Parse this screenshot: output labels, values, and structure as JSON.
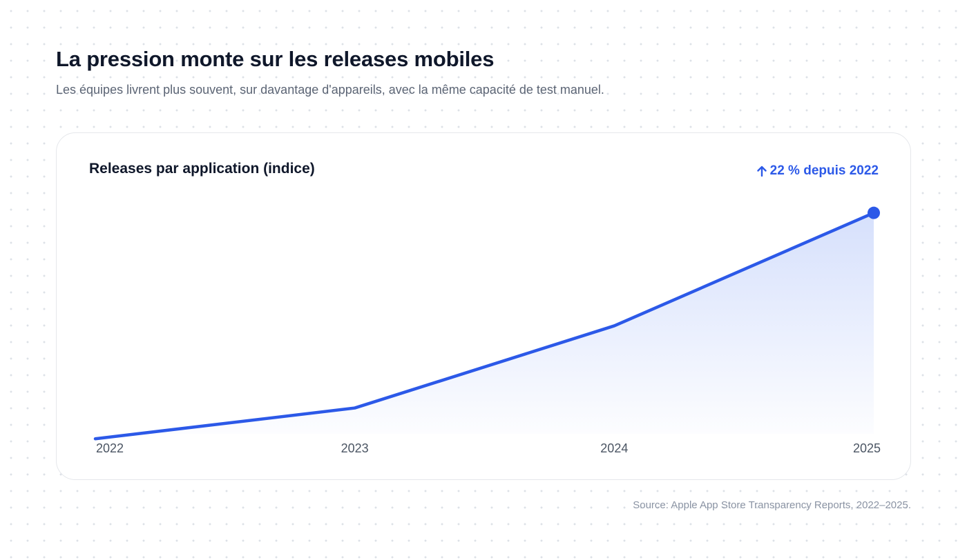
{
  "header": {
    "title": "La pression monte sur les releases mobiles",
    "subtitle": "Les équipes livrent plus souvent, sur davantage d'appareils, avec la même capacité de test manuel."
  },
  "card": {
    "title": "Releases par application (indice)",
    "badge_text": "22 % depuis 2022",
    "badge_icon": "arrow-up-icon"
  },
  "footer": {
    "source": "Source: Apple App Store Transparency Reports, 2022–2025."
  },
  "colors": {
    "accent": "#2c59e8",
    "area_fill_top": "#d6e0fc",
    "axis_text": "#4b5563"
  },
  "chart_data": {
    "type": "area",
    "title": "Releases par application (indice)",
    "x": [
      "2022",
      "2023",
      "2024",
      "2025"
    ],
    "values": [
      100,
      103,
      111,
      122
    ],
    "ylim": [
      98,
      125
    ],
    "xlabel": "",
    "ylabel": "",
    "grid": false,
    "last_point_marker": true
  }
}
